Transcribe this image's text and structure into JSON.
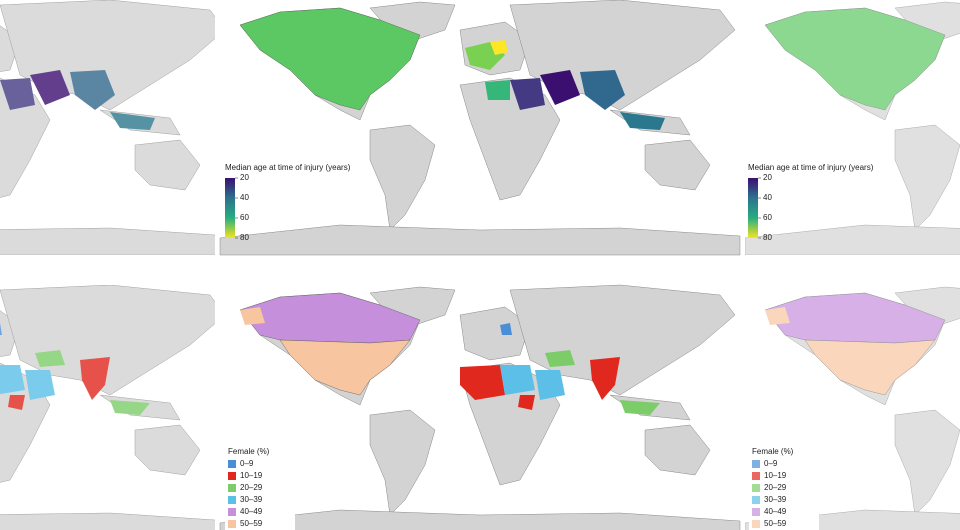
{
  "age_legend": {
    "title": "Median age at time of injury (years)",
    "ticks": [
      20,
      40,
      60,
      80
    ],
    "colors": [
      "#3b0f70",
      "#2c728e",
      "#28ae80",
      "#f3e51e"
    ]
  },
  "female_legend": {
    "title": "Female (%)",
    "items": [
      {
        "label": "0–9",
        "color": "#4a8fd6"
      },
      {
        "label": "10–19",
        "color": "#e0281e"
      },
      {
        "label": "20–29",
        "color": "#7ccd6a"
      },
      {
        "label": "30–39",
        "color": "#5bbfe8"
      },
      {
        "label": "40–49",
        "color": "#c58fdc"
      },
      {
        "label": "50–59",
        "color": "#f7c6a0"
      }
    ]
  }
}
